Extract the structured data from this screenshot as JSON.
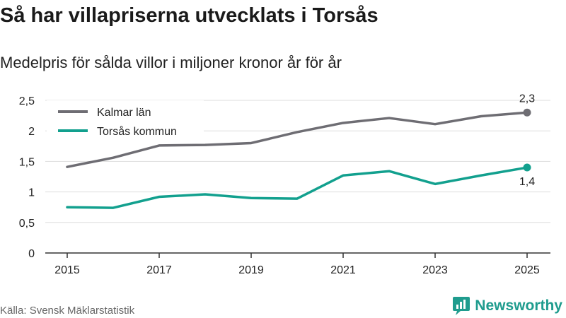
{
  "chart_data": {
    "type": "line",
    "title": "Så har villapriserna utvecklats i Torsås",
    "subtitle": "Medelpris för sålda villor i miljoner kronor år för år",
    "source": "Källa: Svensk Mäklarstatistik",
    "brand": "Newsworthy",
    "xlabel": "",
    "ylabel": "",
    "x": [
      2015,
      2016,
      2017,
      2018,
      2019,
      2020,
      2021,
      2022,
      2023,
      2024,
      2025
    ],
    "xticks": [
      "2015",
      "2017",
      "2019",
      "2021",
      "2023",
      "2025"
    ],
    "xlim": [
      2015,
      2025
    ],
    "ylim": [
      0,
      2.5
    ],
    "yticks": [
      {
        "value": 0,
        "label": "0"
      },
      {
        "value": 0.5,
        "label": "0,5"
      },
      {
        "value": 1,
        "label": "1"
      },
      {
        "value": 1.5,
        "label": "1,5"
      },
      {
        "value": 2,
        "label": "2"
      },
      {
        "value": 2.5,
        "label": "2,5"
      }
    ],
    "grid": true,
    "legend": "top-left",
    "series": [
      {
        "name": "Kalmar län",
        "color": "#6e6d73",
        "values": [
          1.41,
          1.56,
          1.76,
          1.77,
          1.8,
          1.98,
          2.13,
          2.21,
          2.11,
          2.24,
          2.3
        ],
        "end_label": "2,3"
      },
      {
        "name": "Torsås kommun",
        "color": "#12a08e",
        "values": [
          0.75,
          0.74,
          0.92,
          0.96,
          0.9,
          0.89,
          1.27,
          1.34,
          1.13,
          1.27,
          1.4
        ],
        "end_label": "1,4"
      }
    ]
  }
}
